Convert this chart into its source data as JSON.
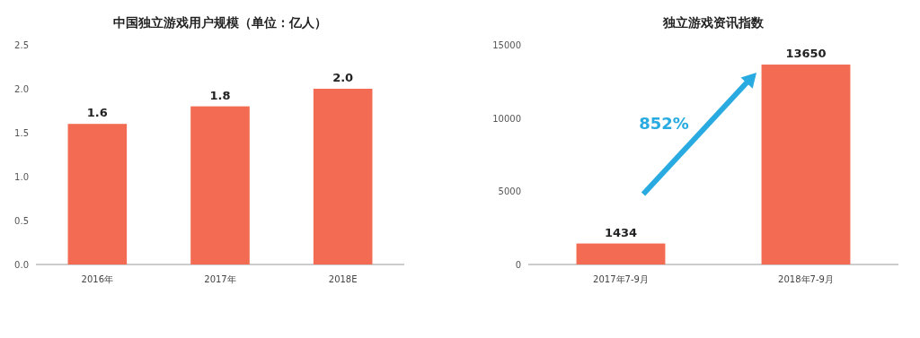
{
  "chart_data": [
    {
      "type": "bar",
      "title": "中国独立游戏用户规模（单位：亿人）",
      "categories": [
        "2016年",
        "2017年",
        "2018E"
      ],
      "series": [
        {
          "color": "#f26b52",
          "values": [
            1.6,
            1.8,
            2.0
          ]
        }
      ],
      "ylim": [
        0,
        2.5
      ],
      "yticks": [
        {
          "value": 0,
          "label": "0.0"
        },
        {
          "value": 0.5,
          "label": "0.5"
        },
        {
          "value": 1,
          "label": "1.0"
        },
        {
          "value": 1.5,
          "label": "1.5"
        },
        {
          "value": 2,
          "label": "2.0"
        },
        {
          "value": 2.5,
          "label": "2.5"
        }
      ],
      "value_labels": [
        "1.6",
        "1.8",
        "2.0"
      ],
      "grid": false
    },
    {
      "type": "bar",
      "title": "独立游戏资讯指数",
      "categories": [
        "2017年7-9月",
        "2018年7-9月"
      ],
      "series": [
        {
          "color": "#f26b52",
          "values": [
            1434,
            13650
          ]
        }
      ],
      "ylim": [
        0,
        15000
      ],
      "yticks": [
        0,
        5000,
        10000,
        15000
      ],
      "data_labels": true,
      "grid": false,
      "annotations": [
        "852%"
      ]
    }
  ]
}
